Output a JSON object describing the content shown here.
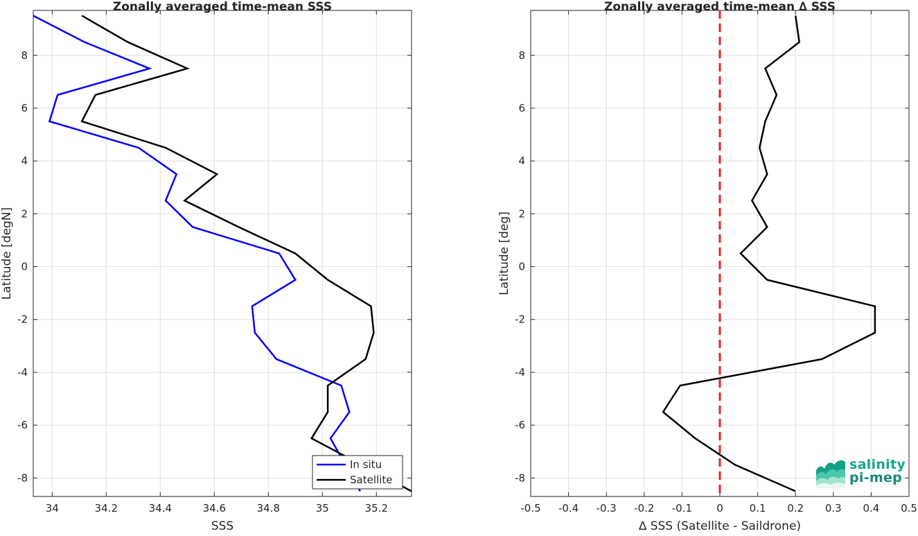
{
  "chart_data": [
    {
      "type": "line",
      "title": "Zonally averaged time-mean SSS",
      "xlabel": "SSS",
      "ylabel": "Latitude [degN]",
      "xlim": [
        33.93,
        35.33
      ],
      "ylim": [
        -8.7,
        9.7
      ],
      "xticks": [
        34,
        34.2,
        34.4,
        34.6,
        34.8,
        35,
        35.2
      ],
      "xtick_labels": [
        "34",
        "34.2",
        "34.4",
        "34.6",
        "34.8",
        "35",
        "35.2"
      ],
      "yticks": [
        -8,
        -6,
        -4,
        -2,
        0,
        2,
        4,
        6,
        8
      ],
      "ytick_labels": [
        "-8",
        "-6",
        "-4",
        "-2",
        "0",
        "2",
        "4",
        "6",
        "8"
      ],
      "grid": true,
      "legend_position": "bottom-right",
      "series": [
        {
          "name": "In situ",
          "color": "#0000ff",
          "x": [
            33.93,
            34.12,
            34.36,
            34.02,
            33.99,
            34.32,
            34.46,
            34.42,
            34.52,
            34.84,
            34.9,
            34.74,
            34.75,
            34.83,
            35.07,
            35.1,
            35.03,
            35.14
          ],
          "y": [
            9.5,
            8.5,
            7.5,
            6.5,
            5.5,
            4.5,
            3.5,
            2.5,
            1.5,
            0.5,
            -0.5,
            -1.5,
            -2.5,
            -3.5,
            -4.5,
            -5.5,
            -6.5,
            -8.5
          ]
        },
        {
          "name": "Satellite",
          "color": "#000000",
          "x": [
            34.11,
            34.28,
            34.5,
            34.16,
            34.11,
            34.42,
            34.61,
            34.49,
            34.69,
            34.9,
            35.02,
            35.18,
            35.19,
            35.16,
            35.02,
            35.02,
            34.96,
            35.33
          ],
          "y": [
            9.5,
            8.5,
            7.5,
            6.5,
            5.5,
            4.5,
            3.5,
            2.5,
            1.5,
            0.5,
            -0.5,
            -1.5,
            -2.5,
            -3.5,
            -4.5,
            -5.5,
            -6.5,
            -8.5
          ]
        }
      ]
    },
    {
      "type": "line",
      "title": "Zonally averaged time-mean ∆ SSS",
      "xlabel": "∆ SSS (Satellite - Saildrone)",
      "ylabel": "Latitude [deg]",
      "xlim": [
        -0.5,
        0.5
      ],
      "ylim": [
        -8.7,
        9.7
      ],
      "xticks": [
        -0.5,
        -0.4,
        -0.3,
        -0.2,
        -0.1,
        0,
        0.1,
        0.2,
        0.3,
        0.4,
        0.5
      ],
      "xtick_labels": [
        "-0.5",
        "-0.4",
        "-0.3",
        "-0.2",
        "-0.1",
        "0",
        "0.1",
        "0.2",
        "0.3",
        "0.4",
        "0.5"
      ],
      "yticks": [
        -8,
        -6,
        -4,
        -2,
        0,
        2,
        4,
        6,
        8
      ],
      "ytick_labels": [
        "-8",
        "-6",
        "-4",
        "-2",
        "0",
        "2",
        "4",
        "6",
        "8"
      ],
      "grid": true,
      "reference_line": {
        "x": 0,
        "color": "#e8231f",
        "style": "dashed"
      },
      "series": [
        {
          "color": "#000000",
          "x": [
            0.2,
            0.21,
            0.12,
            0.15,
            0.12,
            0.105,
            0.125,
            0.085,
            0.125,
            0.055,
            0.125,
            0.41,
            0.41,
            0.27,
            -0.105,
            -0.15,
            -0.065,
            0.04,
            0.2
          ],
          "y": [
            9.5,
            8.5,
            7.5,
            6.5,
            5.5,
            4.5,
            3.5,
            2.5,
            1.5,
            0.5,
            -0.5,
            -1.5,
            -2.5,
            -3.5,
            -4.5,
            -5.5,
            -6.5,
            -7.5,
            -8.5
          ]
        }
      ]
    }
  ],
  "logo": {
    "line1": "salinity",
    "line2": "pi-mep"
  }
}
